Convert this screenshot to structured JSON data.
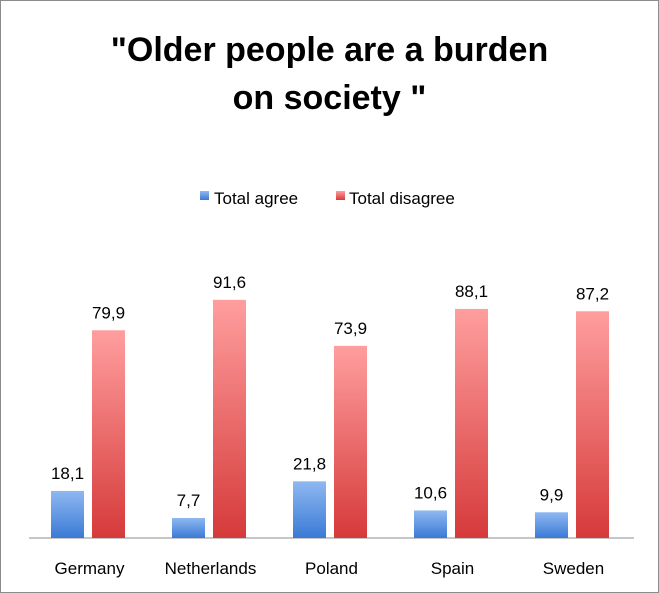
{
  "chart_data": {
    "type": "bar",
    "title_lines": [
      "\"Older people are a burden",
      "on society \""
    ],
    "categories": [
      "Germany",
      "Netherlands",
      "Poland",
      "Spain",
      "Sweden"
    ],
    "series": [
      {
        "name": "Total agree",
        "values": [
          18.1,
          7.7,
          21.8,
          10.6,
          9.9
        ],
        "labels": [
          "18,1",
          "7,7",
          "21,8",
          "10,6",
          "9,9"
        ],
        "color_top": "#8fb8f0",
        "color_bottom": "#3a7ad6"
      },
      {
        "name": "Total disagree",
        "values": [
          79.9,
          91.6,
          73.9,
          88.1,
          87.2
        ],
        "labels": [
          "79,9",
          "91,6",
          "73,9",
          "88,1",
          "87,2"
        ],
        "color_top": "#ff9e9e",
        "color_bottom": "#d63a3a"
      }
    ],
    "legend_position": "top",
    "grid": false,
    "ylim": [
      0,
      100
    ]
  }
}
